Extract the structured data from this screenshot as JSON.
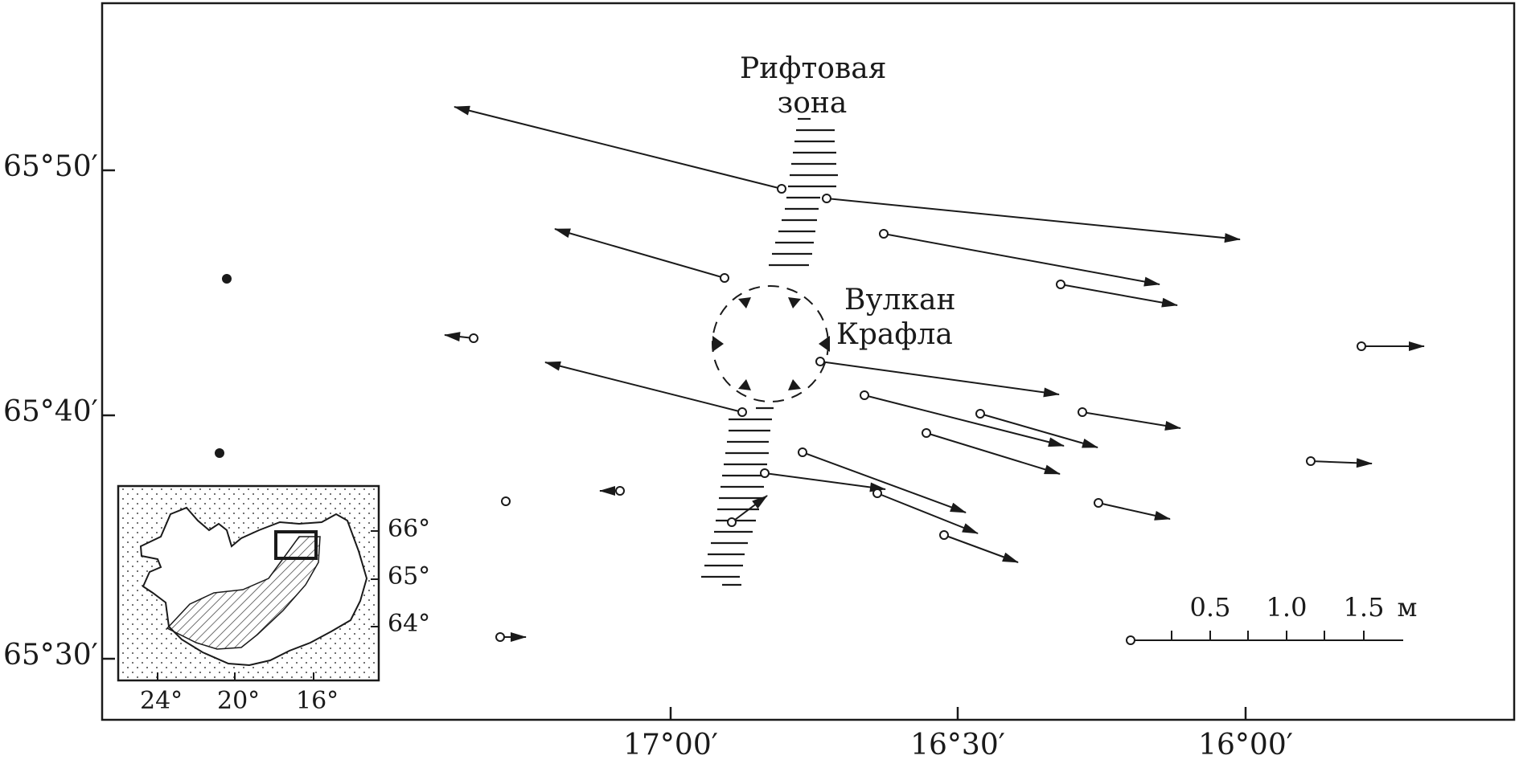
{
  "map": {
    "y_ticks": [
      "65°50′",
      "65°40′",
      "65°30′"
    ],
    "x_ticks": [
      "17°00′",
      "16°30′",
      "16°00′"
    ],
    "labels": {
      "rift_line1": "Рифтовая",
      "rift_line2": "зона",
      "volcano_line1": "Вулкан",
      "volcano_line2": "Крафла"
    },
    "scale_bar": {
      "labels": [
        "0.5",
        "1.0",
        "1.5"
      ],
      "unit": "м"
    },
    "inset": {
      "lat_labels": [
        "66°",
        "65°",
        "64°"
      ],
      "lon_labels": [
        "24°",
        "20°",
        "16°"
      ]
    }
  }
}
